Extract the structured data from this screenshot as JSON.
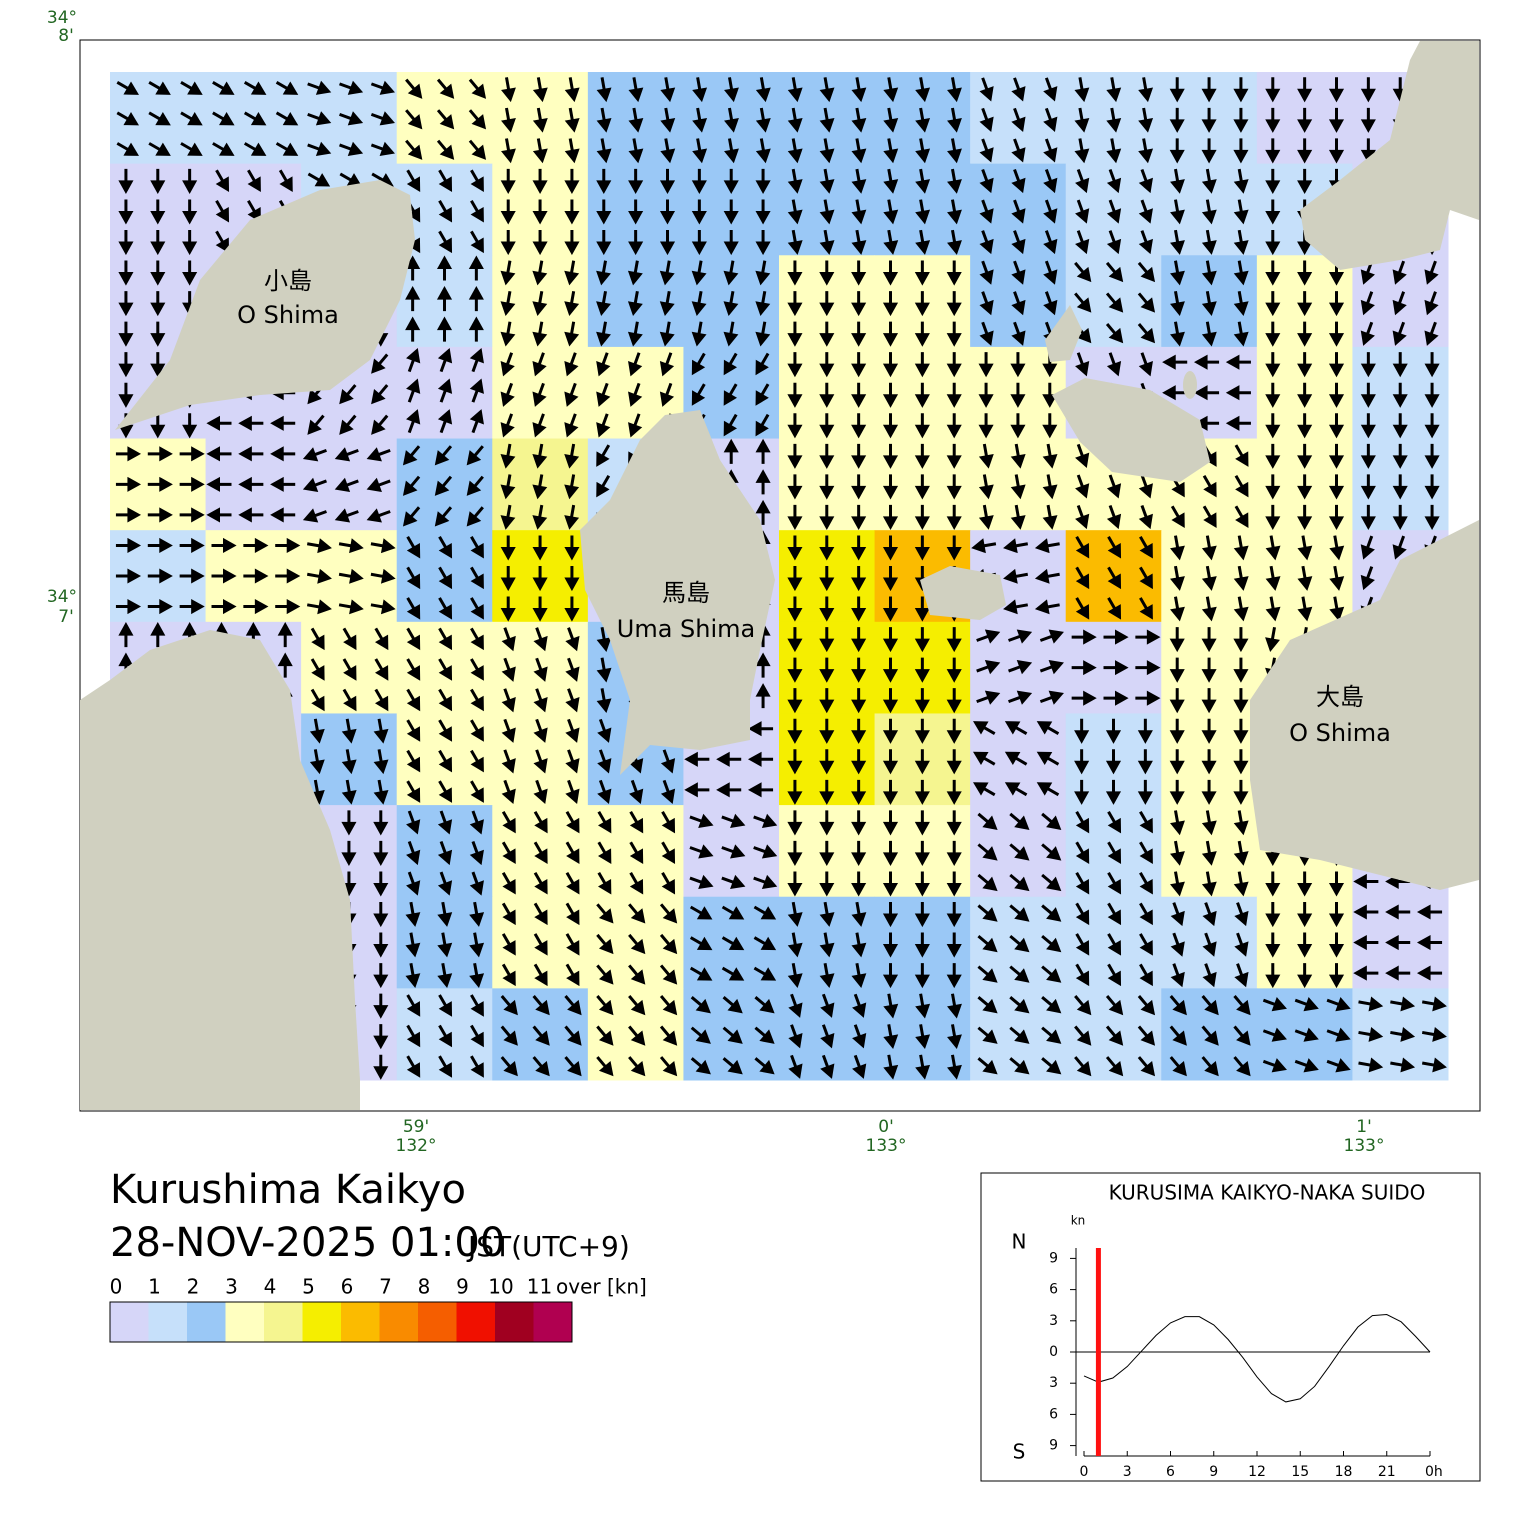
{
  "title": {
    "name": "Kurushima Kaikyo",
    "date": "28-NOV-2025 01:00",
    "zone": "JST(UTC+9)"
  },
  "map": {
    "lat_labels": [
      {
        "deg": "34°",
        "min": "8'"
      },
      {
        "deg": "34°",
        "min": "7'"
      }
    ],
    "lon_labels": [
      {
        "min": "59'",
        "deg": "132°"
      },
      {
        "min": "0'",
        "deg": "133°"
      },
      {
        "min": "1'",
        "deg": "133°"
      }
    ],
    "places": [
      {
        "ja": "小島",
        "en": "O Shima"
      },
      {
        "ja": "馬島",
        "en": "Uma Shima"
      },
      {
        "ja": "大島",
        "en": "O Shima"
      }
    ]
  },
  "current_field": {
    "speeds": [
      [
        1.5,
        1.5,
        1.5,
        3,
        3.5,
        2.5,
        2.5,
        2.5,
        2.5,
        1.5,
        1,
        1,
        0.5,
        0.5
      ],
      [
        0.5,
        0.5,
        1,
        1,
        3.5,
        2.5,
        2.5,
        2.5,
        2.5,
        2,
        1.5,
        1.5,
        1,
        0.5
      ],
      [
        0.5,
        0.5,
        0.5,
        1,
        3.5,
        2,
        2.5,
        3.5,
        3.5,
        2,
        1,
        2,
        3,
        0.5
      ],
      [
        0.5,
        0.5,
        0.5,
        0.5,
        3.5,
        3.5,
        2,
        3.5,
        3.5,
        3.5,
        0.5,
        0.5,
        3.5,
        1
      ],
      [
        3,
        0.5,
        0.5,
        2,
        4.5,
        1.5,
        0.5,
        3.5,
        3.5,
        3.5,
        3.5,
        3.5,
        3.5,
        1
      ],
      [
        1.5,
        3,
        3,
        2.5,
        5,
        0.5,
        0.5,
        5.5,
        6,
        0.5,
        6,
        3.5,
        3.5,
        0.5
      ],
      [
        0.5,
        0.5,
        3,
        3.5,
        3.5,
        2,
        0.5,
        5,
        5.5,
        0.5,
        0.5,
        3.5,
        3.5,
        0.5
      ],
      [
        0.5,
        0.5,
        2,
        3,
        3.5,
        2,
        0.5,
        5,
        4.5,
        0.5,
        1,
        3.5,
        5,
        0.5
      ],
      [
        0.5,
        0.5,
        0.5,
        2,
        3.5,
        3,
        0.5,
        3.5,
        3.5,
        0.5,
        1,
        3,
        3.5,
        0.5
      ],
      [
        0.5,
        0.5,
        0.5,
        2,
        3.5,
        3.5,
        2,
        2,
        2.5,
        1,
        1,
        1.5,
        3,
        0.5
      ],
      [
        0.5,
        0.5,
        0.5,
        1.5,
        2,
        3.5,
        2,
        2,
        2.5,
        1,
        1,
        2,
        2,
        1
      ]
    ],
    "directions": [
      [
        120,
        120,
        110,
        140,
        170,
        170,
        170,
        170,
        170,
        160,
        170,
        180,
        180,
        180
      ],
      [
        180,
        150,
        120,
        150,
        180,
        180,
        180,
        170,
        170,
        160,
        160,
        170,
        180,
        180
      ],
      [
        180,
        180,
        180,
        0,
        190,
        190,
        190,
        180,
        180,
        160,
        140,
        170,
        180,
        200
      ],
      [
        180,
        270,
        220,
        20,
        200,
        200,
        210,
        180,
        180,
        180,
        160,
        270,
        180,
        180
      ],
      [
        90,
        270,
        250,
        220,
        190,
        210,
        0,
        180,
        180,
        170,
        160,
        150,
        180,
        180
      ],
      [
        90,
        90,
        100,
        150,
        180,
        0,
        0,
        180,
        180,
        260,
        150,
        170,
        170,
        200
      ],
      [
        0,
        0,
        150,
        150,
        160,
        170,
        0,
        180,
        180,
        70,
        90,
        180,
        190,
        0
      ],
      [
        0,
        0,
        170,
        150,
        160,
        160,
        270,
        180,
        180,
        300,
        180,
        180,
        180,
        0
      ],
      [
        0,
        0,
        180,
        160,
        150,
        150,
        110,
        180,
        180,
        130,
        150,
        170,
        180,
        270
      ],
      [
        0,
        0,
        180,
        170,
        150,
        140,
        120,
        170,
        180,
        130,
        150,
        160,
        180,
        270
      ],
      [
        0,
        0,
        180,
        150,
        140,
        140,
        130,
        160,
        170,
        130,
        140,
        140,
        110,
        100
      ]
    ]
  },
  "legend": {
    "labels": [
      "0",
      "1",
      "2",
      "3",
      "4",
      "5",
      "6",
      "7",
      "8",
      "9",
      "10",
      "11",
      "over [kn]"
    ],
    "colors": [
      "#d6d6f8",
      "#c6e0fa",
      "#9ac8f6",
      "#ffffc0",
      "#f5f590",
      "#f5ee00",
      "#fbbb00",
      "#f98b00",
      "#f55e00",
      "#f01000",
      "#a00020",
      "#b00050"
    ]
  },
  "tide_chart": {
    "type": "line",
    "title": "KURUSIMA KAIKYO-NAKA SUIDO",
    "unit": "kn",
    "north": "N",
    "south": "S",
    "x": [
      0,
      1,
      2,
      3,
      4,
      5,
      6,
      7,
      8,
      9,
      10,
      11,
      12,
      13,
      14,
      15,
      16,
      17,
      18,
      19,
      20,
      21,
      22,
      23,
      24
    ],
    "values": [
      -2.3,
      -2.9,
      -2.5,
      -1.4,
      0.1,
      1.6,
      2.8,
      3.4,
      3.4,
      2.6,
      1.2,
      -0.5,
      -2.4,
      -4.0,
      -4.8,
      -4.5,
      -3.3,
      -1.4,
      0.6,
      2.4,
      3.5,
      3.6,
      2.9,
      1.5,
      0.0
    ],
    "now": 1,
    "xlim": [
      0,
      24
    ],
    "ylim": [
      -10,
      10
    ],
    "xticks": [
      0,
      3,
      6,
      9,
      12,
      15,
      18,
      21,
      {
        "value": 24,
        "label": "0h"
      }
    ],
    "yticks": [
      9,
      6,
      3,
      0,
      {
        "value": -3,
        "label": "3"
      },
      {
        "value": -6,
        "label": "6"
      },
      {
        "value": -9,
        "label": "9"
      }
    ],
    "color": "#000000",
    "now_color": "#ff1010"
  }
}
